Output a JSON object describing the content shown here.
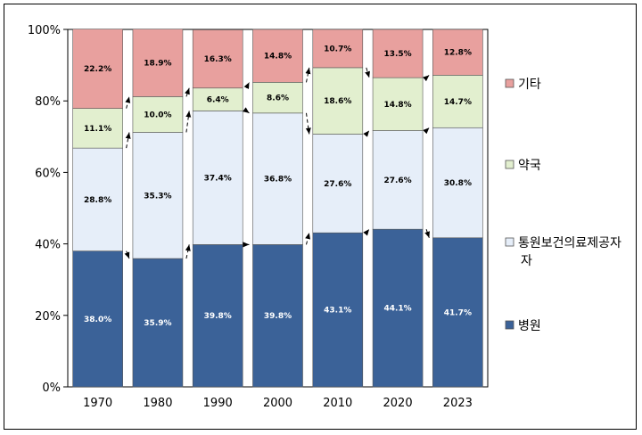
{
  "chart_data": {
    "type": "bar",
    "stacked": true,
    "categories": [
      "1970",
      "1980",
      "1990",
      "2000",
      "2010",
      "2020",
      "2023"
    ],
    "ylim": [
      0,
      100
    ],
    "yticks": [
      "0%",
      "20%",
      "40%",
      "60%",
      "80%",
      "100%"
    ],
    "grid": false,
    "legend_position": "right",
    "series": [
      {
        "name": "병원",
        "color": "#3b6298",
        "label_color": "#ffffff",
        "values": [
          38.0,
          35.9,
          39.8,
          39.8,
          43.1,
          44.1,
          41.7
        ],
        "labels": [
          "38.0%",
          "35.9%",
          "39.8%",
          "39.8%",
          "43.1%",
          "44.1%",
          "41.7%"
        ]
      },
      {
        "name": "통원보건의료제공자",
        "color": "#e6eef9",
        "label_color": "#000000",
        "values": [
          28.8,
          35.3,
          37.4,
          36.8,
          27.6,
          27.6,
          30.8
        ],
        "labels": [
          "28.8%",
          "35.3%",
          "37.4%",
          "36.8%",
          "27.6%",
          "27.6%",
          "30.8%"
        ]
      },
      {
        "name": "약국",
        "color": "#e2efcf",
        "label_color": "#000000",
        "values": [
          11.1,
          10.0,
          6.4,
          8.6,
          18.6,
          14.8,
          14.7
        ],
        "labels": [
          "11.1%",
          "10.0%",
          "6.4%",
          "8.6%",
          "18.6%",
          "14.8%",
          "14.7%"
        ]
      },
      {
        "name": "기타",
        "color": "#e8a09e",
        "label_color": "#000000",
        "values": [
          22.2,
          18.9,
          16.3,
          14.8,
          10.7,
          13.5,
          12.8
        ],
        "labels": [
          "22.2%",
          "18.9%",
          "16.3%",
          "14.8%",
          "10.7%",
          "13.5%",
          "12.8%"
        ]
      }
    ],
    "legend": [
      {
        "lines": [
          "기타"
        ],
        "color": "#e8a09e"
      },
      {
        "lines": [
          "약국"
        ],
        "color": "#e2efcf"
      },
      {
        "lines": [
          "통원보건의료제공자",
          "자"
        ],
        "color": "#e6eef9"
      },
      {
        "lines": [
          "병원"
        ],
        "color": "#3b6298"
      }
    ]
  }
}
